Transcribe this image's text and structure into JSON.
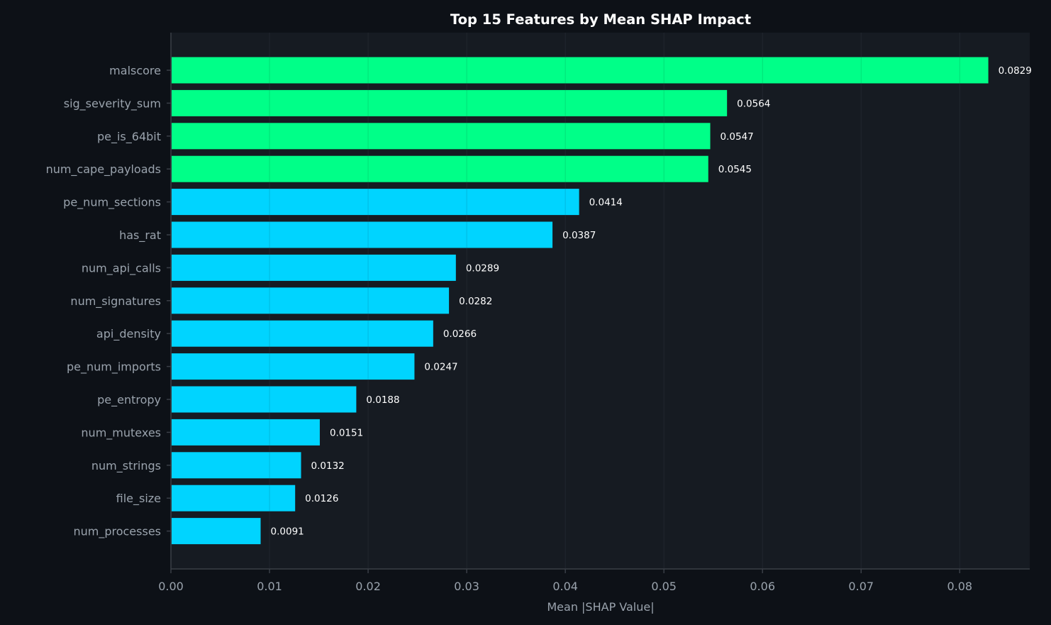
{
  "chart_data": {
    "type": "bar",
    "orientation": "horizontal",
    "title": "Top 15 Features by Mean SHAP Impact",
    "xlabel": "Mean |SHAP Value|",
    "ylabel": "",
    "xlim": [
      0,
      0.0871
    ],
    "xticks": [
      0.0,
      0.01,
      0.02,
      0.03,
      0.04,
      0.05,
      0.06,
      0.07,
      0.08
    ],
    "xtick_labels": [
      "0.00",
      "0.01",
      "0.02",
      "0.03",
      "0.04",
      "0.05",
      "0.06",
      "0.07",
      "0.08"
    ],
    "grid": "vertical",
    "categories": [
      "malscore",
      "sig_severity_sum",
      "pe_is_64bit",
      "num_cape_payloads",
      "pe_num_sections",
      "has_rat",
      "num_api_calls",
      "num_signatures",
      "api_density",
      "pe_num_imports",
      "pe_entropy",
      "num_mutexes",
      "num_strings",
      "file_size",
      "num_processes"
    ],
    "values": [
      0.0829,
      0.0564,
      0.0547,
      0.0545,
      0.0414,
      0.0387,
      0.0289,
      0.0282,
      0.0266,
      0.0247,
      0.0188,
      0.0151,
      0.0132,
      0.0126,
      0.0091
    ],
    "value_labels": [
      "0.0829",
      "0.0564",
      "0.0547",
      "0.0545",
      "0.0414",
      "0.0387",
      "0.0289",
      "0.0282",
      "0.0266",
      "0.0247",
      "0.0188",
      "0.0151",
      "0.0132",
      "0.0126",
      "0.0091"
    ],
    "highlight_count": 4,
    "colors": {
      "highlight": "#00ff88",
      "bar": "#00d4ff",
      "background": "#0d1117",
      "plot_background": "#161b22",
      "text": "#9aa3ad",
      "title": "#ffffff"
    }
  }
}
